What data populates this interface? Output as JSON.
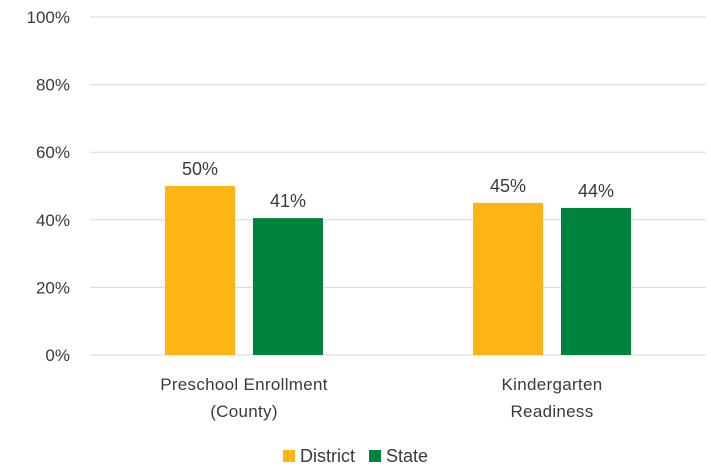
{
  "chart_data": {
    "type": "bar",
    "categories": [
      [
        "Preschool Enrollment",
        "(County)"
      ],
      [
        "Kindergarten",
        "Readiness"
      ]
    ],
    "series": [
      {
        "name": "District",
        "color": "#FDB515",
        "values": [
          50,
          45
        ],
        "labels": [
          "50%",
          "45%"
        ]
      },
      {
        "name": "State",
        "color": "#00843D",
        "values": [
          40.5,
          43.5
        ],
        "labels": [
          "41%",
          "44%"
        ]
      }
    ],
    "ylim": [
      0,
      100
    ],
    "yticks": [
      0,
      20,
      40,
      60,
      80,
      100
    ],
    "ytick_labels": [
      "0%",
      "20%",
      "40%",
      "60%",
      "80%",
      "100%"
    ],
    "grid": true,
    "legend": "bottom"
  }
}
